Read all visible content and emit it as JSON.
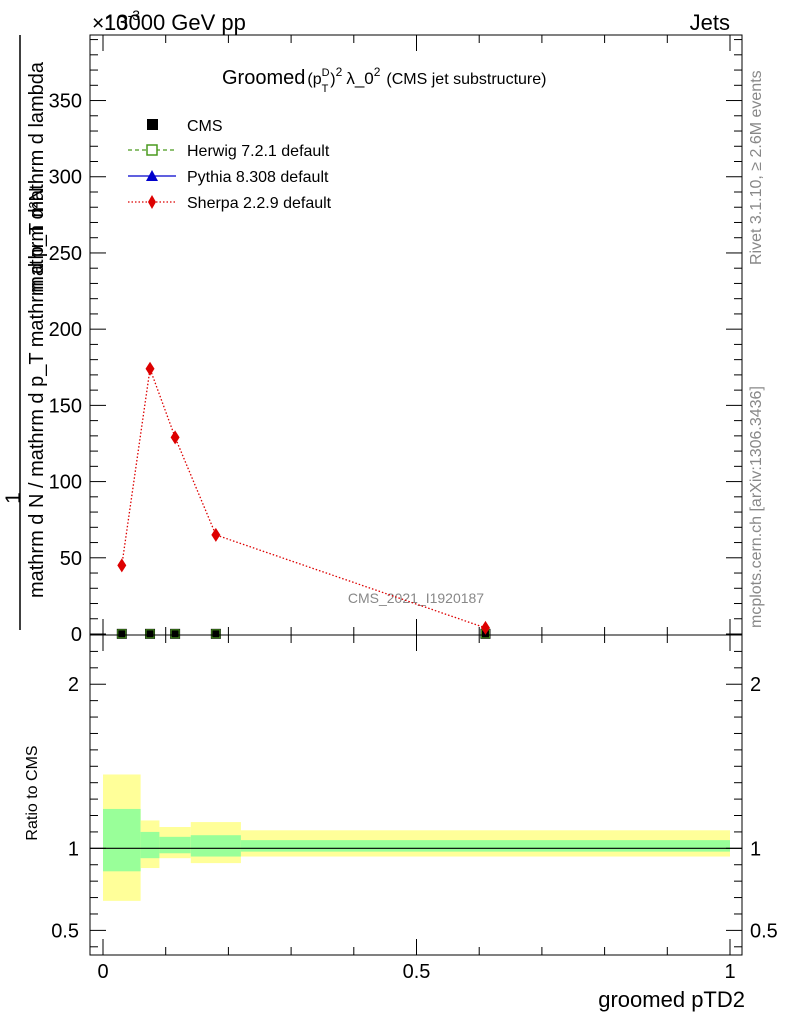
{
  "header": {
    "left": "13000 GeV pp",
    "right": "Jets",
    "exponent_label": "×10",
    "exponent_power": "-3"
  },
  "title": {
    "prefix": "Groomed",
    "p": "(p",
    "sup_D": "D",
    "sub_T": "T",
    "close": ")",
    "sq": "2",
    "lambda": "λ_0",
    "sq2": "2",
    "suffix": "(CMS jet substructure)"
  },
  "ylabel_main": {
    "numerator": "mathrm d²N",
    "denominator": "mathrm d N / mathrm d p_T mathrm d p_T mathrm d lambda",
    "one": "1"
  },
  "ylabel_ratio": "Ratio to CMS",
  "xlabel": "groomed pTD2",
  "watermark": "CMS_2021_I1920187",
  "side_text_top": "Rivet 3.1.10, ≥ 2.6M events",
  "side_text_bottom": "mcplots.cern.ch [arXiv:1306.3436]",
  "legend": [
    {
      "label": "CMS",
      "marker": "square-filled",
      "color": "#000000"
    },
    {
      "label": "Herwig 7.2.1 default",
      "marker": "square-open",
      "color": "#4a9a1f"
    },
    {
      "label": "Pythia 8.308 default",
      "marker": "triangle",
      "color": "#0000cc"
    },
    {
      "label": "Sherpa 2.2.9 default",
      "marker": "diamond",
      "color": "#dd0000"
    }
  ],
  "colors": {
    "band_inner": "#99ff99",
    "band_outer": "#ffff99",
    "sherpa": "#dd0000"
  },
  "chart_data": [
    {
      "type": "line",
      "panel": "main",
      "xlim": [
        0,
        1
      ],
      "ylim": [
        0,
        0.393
      ],
      "yticks": [
        0,
        50,
        100,
        150,
        200,
        250,
        300,
        350
      ],
      "y_scale_factor": "1e-3",
      "series": [
        {
          "name": "CMS",
          "x": [
            0.03,
            0.075,
            0.115,
            0.18,
            0.61
          ],
          "y": [
            0.0001,
            0.0001,
            0.0001,
            0.0001,
            0.0001
          ]
        },
        {
          "name": "Herwig 7.2.1 default",
          "x": [
            0.03,
            0.075,
            0.115,
            0.18,
            0.61
          ],
          "y": [
            0.0001,
            0.0001,
            0.0001,
            0.0001,
            0.0001
          ]
        },
        {
          "name": "Pythia 8.308 default",
          "x": [
            0.03,
            0.075,
            0.115,
            0.18,
            0.61
          ],
          "y": [
            0.0001,
            0.0001,
            0.0001,
            0.0001,
            0.0001
          ]
        },
        {
          "name": "Sherpa 2.2.9 default",
          "x": [
            0.03,
            0.075,
            0.115,
            0.18,
            0.61
          ],
          "y": [
            0.045,
            0.174,
            0.129,
            0.065,
            0.004
          ]
        }
      ]
    },
    {
      "type": "area",
      "panel": "ratio",
      "xlim": [
        0,
        1
      ],
      "ylim": [
        0.35,
        2.3
      ],
      "xticks": [
        0,
        0.5,
        1
      ],
      "yticks": [
        0.5,
        1,
        2
      ],
      "bins": [
        {
          "x0": 0.0,
          "x1": 0.06,
          "inner": [
            0.86,
            1.24
          ],
          "outer": [
            0.68,
            1.45
          ]
        },
        {
          "x0": 0.06,
          "x1": 0.09,
          "inner": [
            0.94,
            1.1
          ],
          "outer": [
            0.88,
            1.17
          ]
        },
        {
          "x0": 0.09,
          "x1": 0.14,
          "inner": [
            0.97,
            1.07
          ],
          "outer": [
            0.94,
            1.13
          ]
        },
        {
          "x0": 0.14,
          "x1": 0.22,
          "inner": [
            0.95,
            1.08
          ],
          "outer": [
            0.91,
            1.16
          ]
        },
        {
          "x0": 0.22,
          "x1": 1.0,
          "inner": [
            0.98,
            1.05
          ],
          "outer": [
            0.95,
            1.11
          ]
        }
      ]
    }
  ]
}
